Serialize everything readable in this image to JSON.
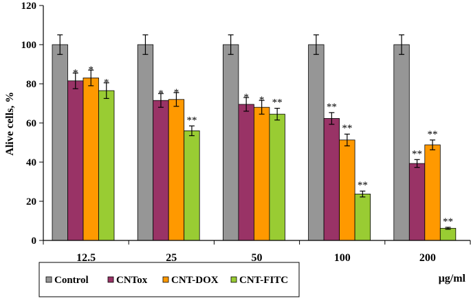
{
  "chart_data": {
    "type": "bar",
    "ylabel": "Alive cells, %",
    "xlabel": "µg/ml",
    "ylim": [
      0,
      120
    ],
    "y_ticks": [
      "0",
      "20",
      "40",
      "60",
      "80",
      "100",
      "120"
    ],
    "categories": [
      "12.5",
      "25",
      "50",
      "100",
      "200"
    ],
    "grid": false,
    "legend_position": "bottom",
    "error_bars": true,
    "series": [
      {
        "name": "Control",
        "color": "#969696",
        "values": [
          100,
          100,
          100,
          100,
          100
        ],
        "errors": [
          5,
          5,
          5,
          5,
          5
        ],
        "labels": [
          "",
          "",
          "",
          "",
          ""
        ]
      },
      {
        "name": "CNTox",
        "color": "#993366",
        "values": [
          81.5,
          71.5,
          69.5,
          62.3,
          39.3
        ],
        "errors": [
          4,
          3.5,
          3.5,
          3,
          2
        ],
        "labels": [
          "*",
          "*",
          "*",
          "**",
          "**"
        ]
      },
      {
        "name": "CNT-DOX",
        "color": "#FF9900",
        "values": [
          83,
          72,
          68,
          51.3,
          48.8
        ],
        "errors": [
          4,
          3.5,
          3.5,
          3,
          2.5
        ],
        "labels": [
          "*",
          "*",
          "*",
          "**",
          "**"
        ]
      },
      {
        "name": "CNT-FITC",
        "color": "#99CC33",
        "values": [
          76.5,
          56,
          64.5,
          23.7,
          6.2
        ],
        "errors": [
          4,
          2.5,
          3,
          1.5,
          0.5
        ],
        "labels": [
          "*",
          "**",
          "**",
          "**",
          "**"
        ]
      }
    ]
  }
}
